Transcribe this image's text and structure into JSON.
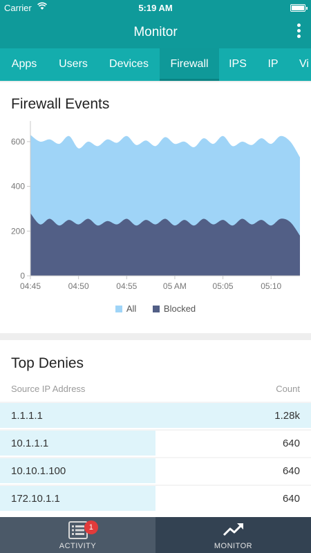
{
  "status_bar": {
    "carrier": "Carrier",
    "time": "5:19 AM"
  },
  "header": {
    "title": "Monitor"
  },
  "tabs": [
    {
      "label": "Apps"
    },
    {
      "label": "Users"
    },
    {
      "label": "Devices"
    },
    {
      "label": "Firewall",
      "active": true
    },
    {
      "label": "IPS"
    },
    {
      "label": "IP"
    },
    {
      "label": "Vi"
    }
  ],
  "firewall_events": {
    "title": "Firewall Events",
    "legend": {
      "all": "All",
      "blocked": "Blocked"
    }
  },
  "chart_data": {
    "type": "area",
    "title": "Firewall Events",
    "xlabel": "",
    "ylabel": "",
    "x_ticks": [
      "04:45",
      "04:50",
      "04:55",
      "05 AM",
      "05:05",
      "05:10"
    ],
    "y_ticks": [
      0,
      200,
      400,
      600
    ],
    "ylim": [
      0,
      680
    ],
    "grid": false,
    "legend_position": "bottom",
    "colors": {
      "all": "#9fd4f7",
      "blocked": "#525f86"
    },
    "series": [
      {
        "name": "All",
        "x": [
          "04:45",
          "04:46",
          "04:47",
          "04:48",
          "04:49",
          "04:50",
          "04:51",
          "04:52",
          "04:53",
          "04:54",
          "04:55",
          "04:56",
          "04:57",
          "04:58",
          "04:59",
          "05:00",
          "05:01",
          "05:02",
          "05:03",
          "05:04",
          "05:05",
          "05:06",
          "05:07",
          "05:08",
          "05:09",
          "05:10",
          "05:11",
          "05:12",
          "05:13"
        ],
        "values": [
          630,
          600,
          610,
          590,
          625,
          570,
          600,
          580,
          610,
          595,
          625,
          585,
          605,
          580,
          620,
          590,
          600,
          575,
          615,
          590,
          625,
          580,
          600,
          585,
          615,
          590,
          625,
          600,
          530
        ]
      },
      {
        "name": "Blocked",
        "x": [
          "04:45",
          "04:46",
          "04:47",
          "04:48",
          "04:49",
          "04:50",
          "04:51",
          "04:52",
          "04:53",
          "04:54",
          "04:55",
          "04:56",
          "04:57",
          "04:58",
          "04:59",
          "05:00",
          "05:01",
          "05:02",
          "05:03",
          "05:04",
          "05:05",
          "05:06",
          "05:07",
          "05:08",
          "05:09",
          "05:10",
          "05:11",
          "05:12",
          "05:13"
        ],
        "values": [
          280,
          230,
          255,
          225,
          250,
          230,
          255,
          225,
          245,
          230,
          255,
          225,
          250,
          230,
          255,
          225,
          250,
          225,
          255,
          230,
          250,
          225,
          255,
          230,
          250,
          225,
          255,
          240,
          180
        ]
      }
    ]
  },
  "top_denies": {
    "title": "Top Denies",
    "col_source": "Source IP Address",
    "col_count": "Count",
    "rows": [
      {
        "ip": "1.1.1.1",
        "count": "1.28k",
        "share": 1.0
      },
      {
        "ip": "10.1.1.1",
        "count": "640",
        "share": 0.5
      },
      {
        "ip": "10.10.1.100",
        "count": "640",
        "share": 0.5
      },
      {
        "ip": "172.10.1.1",
        "count": "640",
        "share": 0.5
      }
    ]
  },
  "bottom_nav": {
    "activity": {
      "label": "ACTIVITY",
      "badge": "1"
    },
    "monitor": {
      "label": "MONITOR"
    }
  }
}
